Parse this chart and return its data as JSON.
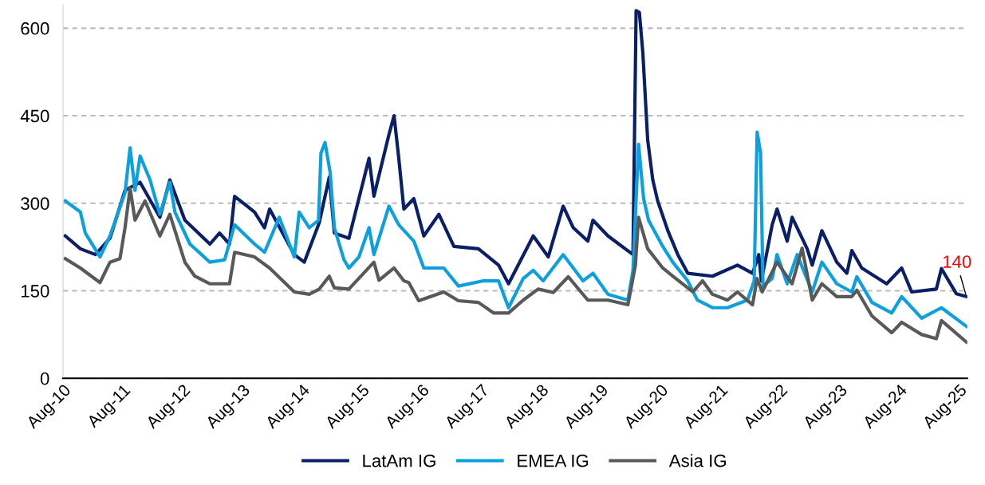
{
  "chart_data": {
    "type": "line",
    "xlim": [
      "2010-08-01",
      "2025-09-20"
    ],
    "xticks": [
      {
        "value": "2010-08-01",
        "label": "Aug-10"
      },
      {
        "value": "2011-08-01",
        "label": "Aug-11"
      },
      {
        "value": "2012-08-01",
        "label": "Aug-12"
      },
      {
        "value": "2013-08-01",
        "label": "Aug-13"
      },
      {
        "value": "2014-08-01",
        "label": "Aug-14"
      },
      {
        "value": "2015-08-01",
        "label": "Aug-15"
      },
      {
        "value": "2016-08-01",
        "label": "Aug-16"
      },
      {
        "value": "2017-08-01",
        "label": "Aug-17"
      },
      {
        "value": "2018-08-01",
        "label": "Aug-18"
      },
      {
        "value": "2019-08-01",
        "label": "Aug-19"
      },
      {
        "value": "2020-08-01",
        "label": "Aug-20"
      },
      {
        "value": "2021-08-01",
        "label": "Aug-21"
      },
      {
        "value": "2022-08-01",
        "label": "Aug-22"
      },
      {
        "value": "2023-08-01",
        "label": "Aug-23"
      },
      {
        "value": "2024-08-01",
        "label": "Aug-24"
      },
      {
        "value": "2025-08-01",
        "label": "Aug-25"
      }
    ],
    "ylim": [
      0,
      640
    ],
    "yticks": [
      0,
      150,
      300,
      450,
      600
    ],
    "grid": "y",
    "legend": "bottom",
    "line_style": "solid",
    "annotations": [
      {
        "text": "140",
        "x": "2025-09-15",
        "y": 140
      }
    ],
    "series": [
      {
        "name": "LatAm IG",
        "color": "#0a1f66",
        "x": [
          "2010-08-15",
          "2010-11-15",
          "2011-02-15",
          "2011-05-15",
          "2011-08-15",
          "2011-11-15",
          "2012-03-15",
          "2012-05-15",
          "2012-08-15",
          "2013-01-15",
          "2013-03-15",
          "2013-05-15",
          "2013-06-15",
          "2013-10-15",
          "2013-12-15",
          "2014-01-15",
          "2014-06-15",
          "2014-08-15",
          "2014-11-15",
          "2015-01-15",
          "2015-02-15",
          "2015-05-15",
          "2015-09-15",
          "2015-10-15",
          "2016-01-15",
          "2016-02-15",
          "2016-03-15",
          "2016-04-15",
          "2016-06-15",
          "2016-08-15",
          "2016-11-15",
          "2017-02-15",
          "2017-07-15",
          "2017-11-15",
          "2018-01-15",
          "2018-06-15",
          "2018-09-15",
          "2018-12-15",
          "2019-02-15",
          "2019-05-15",
          "2019-06-15",
          "2019-09-15",
          "2020-02-15",
          "2020-03-05",
          "2020-03-25",
          "2020-04-15",
          "2020-05-15",
          "2020-06-15",
          "2020-07-15",
          "2020-09-15",
          "2020-11-15",
          "2021-01-15",
          "2021-06-15",
          "2021-11-15",
          "2022-02-15",
          "2022-03-25",
          "2022-04-10",
          "2022-06-15",
          "2022-07-15",
          "2022-09-15",
          "2022-10-15",
          "2023-01-15",
          "2023-02-15",
          "2023-04-15",
          "2023-07-15",
          "2023-09-15",
          "2023-10-15",
          "2023-12-15",
          "2024-05-15",
          "2024-08-15",
          "2024-10-15",
          "2025-03-15",
          "2025-04-15",
          "2025-07-15",
          "2025-09-15"
        ],
        "values": [
          244,
          222,
          212,
          240,
          322,
          336,
          276,
          340,
          271,
          230,
          249,
          230,
          312,
          285,
          258,
          290,
          212,
          199,
          267,
          345,
          249,
          240,
          377,
          312,
          418,
          450,
          377,
          290,
          308,
          244,
          281,
          226,
          222,
          194,
          162,
          244,
          208,
          295,
          258,
          235,
          271,
          244,
          212,
          630,
          627,
          559,
          408,
          340,
          304,
          253,
          212,
          180,
          175,
          194,
          180,
          212,
          167,
          263,
          290,
          235,
          276,
          222,
          194,
          253,
          199,
          180,
          219,
          189,
          162,
          189,
          148,
          153,
          188,
          145,
          140
        ]
      },
      {
        "name": "EMEA IG",
        "color": "#0ea0dc",
        "x": [
          "2010-08-15",
          "2010-11-15",
          "2010-12-15",
          "2011-03-15",
          "2011-05-15",
          "2011-08-15",
          "2011-09-15",
          "2011-10-15",
          "2011-11-15",
          "2012-01-15",
          "2012-03-15",
          "2012-05-15",
          "2012-06-15",
          "2012-09-15",
          "2013-01-15",
          "2013-04-15",
          "2013-06-15",
          "2013-10-15",
          "2013-12-15",
          "2014-03-15",
          "2014-06-15",
          "2014-07-15",
          "2014-09-15",
          "2014-11-10",
          "2014-11-25",
          "2014-12-20",
          "2015-01-20",
          "2015-02-15",
          "2015-04-15",
          "2015-05-15",
          "2015-07-15",
          "2015-09-15",
          "2015-10-15",
          "2016-01-15",
          "2016-03-15",
          "2016-06-15",
          "2016-08-15",
          "2016-12-15",
          "2017-03-15",
          "2017-08-15",
          "2017-11-15",
          "2018-01-15",
          "2018-04-15",
          "2018-06-15",
          "2018-08-15",
          "2018-12-15",
          "2019-04-15",
          "2019-06-15",
          "2019-09-15",
          "2020-01-15",
          "2020-02-15",
          "2020-03-20",
          "2020-04-20",
          "2020-05-20",
          "2020-08-15",
          "2020-10-15",
          "2021-01-15",
          "2021-03-15",
          "2021-06-15",
          "2021-09-15",
          "2022-01-15",
          "2022-02-25",
          "2022-03-15",
          "2022-04-05",
          "2022-04-20",
          "2022-06-15",
          "2022-07-15",
          "2022-09-15",
          "2022-11-15",
          "2023-02-15",
          "2023-04-15",
          "2023-07-15",
          "2023-10-15",
          "2023-11-15",
          "2024-02-15",
          "2024-06-15",
          "2024-08-15",
          "2024-12-15",
          "2025-04-15",
          "2025-09-15"
        ],
        "values": [
          304,
          285,
          249,
          208,
          244,
          318,
          395,
          322,
          381,
          340,
          281,
          336,
          285,
          230,
          199,
          203,
          263,
          230,
          216,
          276,
          208,
          285,
          258,
          271,
          386,
          404,
          353,
          258,
          203,
          189,
          208,
          258,
          212,
          295,
          263,
          235,
          189,
          189,
          158,
          167,
          167,
          121,
          171,
          185,
          167,
          212,
          167,
          180,
          144,
          134,
          185,
          401,
          308,
          271,
          226,
          199,
          167,
          134,
          121,
          121,
          134,
          167,
          422,
          386,
          158,
          171,
          212,
          162,
          212,
          148,
          199,
          162,
          148,
          174,
          130,
          112,
          140,
          103,
          121,
          89
        ]
      },
      {
        "name": "Asia IG",
        "color": "#595959",
        "x": [
          "2010-08-15",
          "2010-11-15",
          "2011-03-15",
          "2011-05-15",
          "2011-07-15",
          "2011-08-15",
          "2011-09-15",
          "2011-10-15",
          "2011-12-15",
          "2012-03-15",
          "2012-05-15",
          "2012-08-15",
          "2012-10-15",
          "2013-01-15",
          "2013-05-15",
          "2013-06-15",
          "2013-10-15",
          "2014-01-15",
          "2014-06-15",
          "2014-09-15",
          "2014-11-15",
          "2015-01-15",
          "2015-02-15",
          "2015-05-15",
          "2015-10-15",
          "2015-11-15",
          "2016-02-15",
          "2016-04-15",
          "2016-05-15",
          "2016-07-15",
          "2016-12-15",
          "2017-03-15",
          "2017-07-15",
          "2017-10-15",
          "2018-01-15",
          "2018-04-15",
          "2018-07-15",
          "2018-10-15",
          "2019-01-15",
          "2019-05-15",
          "2019-09-15",
          "2020-01-15",
          "2020-03-01",
          "2020-03-20",
          "2020-05-15",
          "2020-08-15",
          "2020-10-15",
          "2021-02-15",
          "2021-04-15",
          "2021-06-15",
          "2021-09-15",
          "2021-11-15",
          "2022-02-15",
          "2022-03-15",
          "2022-04-15",
          "2022-07-15",
          "2022-10-15",
          "2022-12-15",
          "2023-02-15",
          "2023-04-15",
          "2023-07-15",
          "2023-10-15",
          "2023-11-15",
          "2024-02-15",
          "2024-06-15",
          "2024-08-15",
          "2024-12-15",
          "2025-03-15",
          "2025-04-15",
          "2025-09-15"
        ],
        "values": [
          205,
          189,
          164,
          199,
          205,
          258,
          326,
          271,
          304,
          244,
          281,
          199,
          175,
          162,
          162,
          216,
          208,
          189,
          148,
          144,
          153,
          175,
          155,
          153,
          199,
          168,
          189,
          167,
          164,
          133,
          148,
          133,
          130,
          112,
          112,
          134,
          153,
          147,
          174,
          134,
          134,
          126,
          194,
          276,
          222,
          189,
          175,
          148,
          167,
          144,
          134,
          148,
          126,
          171,
          148,
          199,
          162,
          223,
          134,
          162,
          140,
          140,
          151,
          107,
          78,
          96,
          75,
          68,
          99,
          62
        ]
      }
    ]
  }
}
